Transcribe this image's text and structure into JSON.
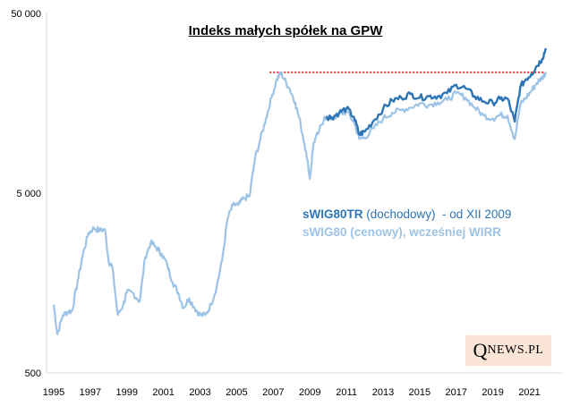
{
  "chart_data": {
    "type": "line",
    "title": "Indeks małych spółek na GPW",
    "xlabel": "",
    "ylabel": "",
    "y_scale": "log",
    "ylim": [
      500,
      50000
    ],
    "xlim": [
      1995,
      2022
    ],
    "ytick_labels": [
      "50 000",
      "5 000",
      "500"
    ],
    "ytick_values": [
      50000,
      5000,
      500
    ],
    "xtick_labels": [
      "1995",
      "1997",
      "1999",
      "2001",
      "2003",
      "2005",
      "2007",
      "2009",
      "2011",
      "2013",
      "2015",
      "2017",
      "2019",
      "2021"
    ],
    "xtick_values": [
      1995,
      1997,
      1999,
      2001,
      2003,
      2005,
      2007,
      2009,
      2011,
      2013,
      2015,
      2017,
      2019,
      2021
    ],
    "reference_line": {
      "value": 23500,
      "from": 2006.8,
      "to": 2021.8,
      "style": "dotted",
      "color": "#ff0000"
    },
    "series": [
      {
        "name": "sWIG80 (cenowy), wcześniej WIRR",
        "color": "#9dc3e6",
        "x": [
          1995.0,
          1995.2,
          1995.5,
          1995.8,
          1996.0,
          1996.3,
          1996.6,
          1996.9,
          1997.2,
          1997.5,
          1997.8,
          1998.0,
          1998.2,
          1998.5,
          1998.8,
          1999.0,
          1999.3,
          1999.7,
          2000.0,
          2000.3,
          2000.6,
          2000.9,
          2001.2,
          2001.5,
          2001.8,
          2002.1,
          2002.4,
          2002.7,
          2003.0,
          2003.3,
          2003.6,
          2003.9,
          2004.2,
          2004.5,
          2004.8,
          2005.1,
          2005.4,
          2005.7,
          2006.0,
          2006.3,
          2006.6,
          2006.9,
          2007.2,
          2007.4,
          2007.6,
          2007.9,
          2008.2,
          2008.5,
          2008.8,
          2009.0,
          2009.2,
          2009.5,
          2009.8,
          2010.2,
          2010.6,
          2011.0,
          2011.4,
          2011.7,
          2012.0,
          2012.5,
          2013.0,
          2013.5,
          2014.0,
          2014.5,
          2015.0,
          2015.5,
          2016.0,
          2016.5,
          2017.0,
          2017.5,
          2018.0,
          2018.5,
          2019.0,
          2019.4,
          2019.8,
          2020.2,
          2020.5,
          2020.8,
          2021.1,
          2021.4,
          2021.7,
          2021.9
        ],
        "values": [
          1200,
          820,
          1050,
          1100,
          1100,
          1600,
          2300,
          3000,
          3200,
          3100,
          3150,
          2100,
          1950,
          1050,
          1200,
          1400,
          1400,
          1250,
          2200,
          2650,
          2500,
          2300,
          2000,
          1600,
          1400,
          1150,
          1300,
          1150,
          1050,
          1050,
          1200,
          1500,
          2100,
          3600,
          4300,
          4300,
          4700,
          4800,
          7800,
          10000,
          13000,
          17000,
          21500,
          23400,
          21500,
          19000,
          16000,
          12000,
          8500,
          6000,
          9500,
          11000,
          13300,
          13000,
          13700,
          14200,
          12500,
          10000,
          10200,
          11500,
          13000,
          14000,
          14500,
          15000,
          15800,
          15500,
          16000,
          16500,
          18000,
          17000,
          15000,
          13500,
          13000,
          13600,
          13500,
          10000,
          15500,
          17000,
          18500,
          20500,
          22000,
          23500
        ]
      },
      {
        "name": "sWIG80TR (dochodowy)  - od XII 2009",
        "color": "#2e75b6",
        "x": [
          2009.9,
          2010.2,
          2010.6,
          2011.0,
          2011.4,
          2011.7,
          2012.0,
          2012.5,
          2013.0,
          2013.5,
          2014.0,
          2014.5,
          2015.0,
          2015.5,
          2016.0,
          2016.5,
          2017.0,
          2017.5,
          2018.0,
          2018.5,
          2019.0,
          2019.4,
          2019.8,
          2020.2,
          2020.5,
          2020.8,
          2021.1,
          2021.4,
          2021.7,
          2021.9
        ],
        "values": [
          13300,
          13200,
          14000,
          14800,
          13300,
          10600,
          11000,
          12700,
          14700,
          16400,
          17000,
          17800,
          17000,
          17300,
          17300,
          18000,
          20000,
          19200,
          17300,
          16200,
          15900,
          16700,
          16800,
          12500,
          19500,
          21500,
          23000,
          25500,
          28000,
          32000
        ]
      }
    ]
  },
  "legend": {
    "tr_bold": "sWIG80TR",
    "tr_rest": " (dochodowy)  - od XII 2009",
    "price": "sWIG80 (cenowy), wcześniej WIRR"
  },
  "brand": {
    "q": "Q",
    "rest": "NEWS.PL"
  }
}
